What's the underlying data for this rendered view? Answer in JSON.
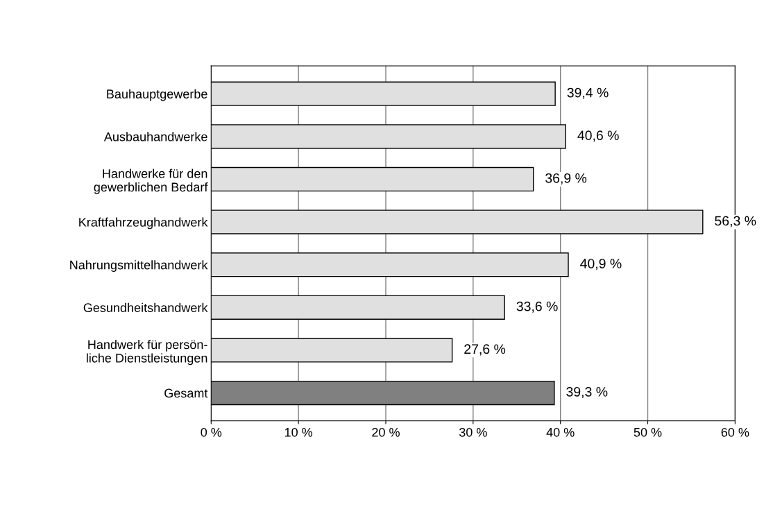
{
  "chart_data": {
    "type": "bar",
    "orientation": "horizontal",
    "categories": [
      "Bauhauptgewerbe",
      "Ausbauhandwerke",
      "Handwerke für den\ngewerblichen Bedarf",
      "Kraftfahrzeughandwerk",
      "Nahrungsmittelhandwerk",
      "Gesundheitshandwerk",
      "Handwerk für persön-\nliche Dienstleistungen",
      "Gesamt"
    ],
    "values": [
      39.4,
      40.6,
      36.9,
      56.3,
      40.9,
      33.6,
      27.6,
      39.3
    ],
    "colors": [
      "#e0e0e0",
      "#e0e0e0",
      "#e0e0e0",
      "#e0e0e0",
      "#e0e0e0",
      "#e0e0e0",
      "#e0e0e0",
      "#808080"
    ],
    "value_labels": [
      "39,4 %",
      "40,6 %",
      "36,9 %",
      "56,3 %",
      "40,9 %",
      "33,6 %",
      "27,6 %",
      "39,3 %"
    ],
    "xlim": [
      0,
      60
    ],
    "xticks": [
      {
        "value": 0,
        "label": "0 %"
      },
      {
        "value": 10,
        "label": "10 %"
      },
      {
        "value": 20,
        "label": "20 %"
      },
      {
        "value": 30,
        "label": "30 %"
      },
      {
        "value": 40,
        "label": "40 %"
      },
      {
        "value": 50,
        "label": "50 %"
      },
      {
        "value": 60,
        "label": "60 %"
      }
    ],
    "grid": "x",
    "legend": false
  }
}
